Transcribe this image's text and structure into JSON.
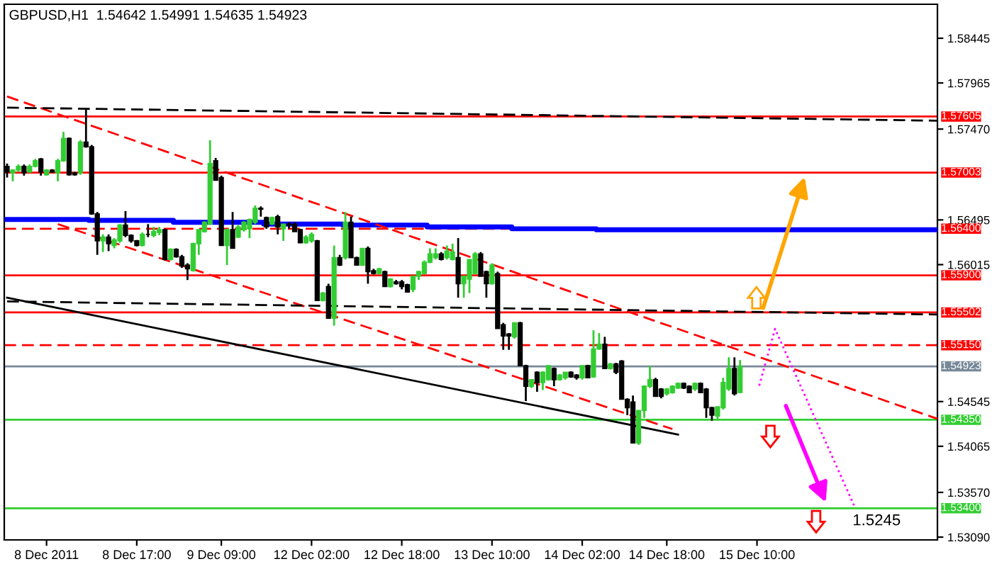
{
  "chart_data": {
    "type": "candlestick",
    "title": "GBPUSD,H1  1.54642 1.54991 1.54635 1.54923",
    "categories": [
      null,
      null,
      null,
      null,
      null,
      null,
      null,
      "8 Dec 2011",
      null,
      null,
      null,
      null,
      null,
      null,
      null,
      null,
      null,
      null,
      null,
      null,
      null,
      null,
      null,
      "8 Dec 17:00",
      null,
      null,
      null,
      null,
      null,
      null,
      null,
      null,
      null,
      null,
      null,
      null,
      null,
      null,
      "9 Dec 09:00",
      null,
      null,
      null,
      null,
      null,
      null,
      null,
      null,
      null,
      null,
      null,
      null,
      null,
      null,
      null,
      "12 Dec 02:00",
      null,
      null,
      null,
      null,
      null,
      null,
      null,
      null,
      null,
      null,
      null,
      null,
      null,
      null,
      null,
      "12 Dec 18:00",
      null,
      null,
      null,
      null,
      null,
      null,
      null,
      null,
      null,
      null,
      null,
      null,
      null,
      null,
      null,
      "13 Dec 10:00",
      null,
      null,
      null,
      null,
      null,
      null,
      null,
      null,
      null,
      null,
      null,
      null,
      null,
      null,
      null,
      "14 Dec 02:00",
      null,
      null,
      null,
      null,
      null,
      null,
      null,
      null,
      null,
      null,
      null,
      null,
      null,
      null,
      "14 Dec 18:00",
      null,
      null,
      null,
      null,
      null,
      null,
      null,
      null,
      null,
      null,
      null,
      null,
      null,
      null,
      null,
      "15 Dec 10:00",
      null,
      null,
      null,
      null,
      null,
      null,
      null,
      null,
      null,
      null,
      null,
      null,
      null,
      null,
      null,
      null,
      null,
      null,
      null,
      null,
      null,
      null,
      null,
      null,
      null,
      null,
      null,
      null,
      null,
      null,
      null,
      null
    ],
    "colors": [
      "#000000",
      "#32cd32",
      "#32cd32",
      "#000000",
      "#32cd32",
      "#32cd32",
      "#000000",
      "#32cd32",
      "#000000",
      "#32cd32",
      "#32cd32",
      "#000000",
      "#000000",
      "#32cd32",
      "#000000",
      "#000000",
      "#000000",
      "#32cd32",
      "#000000",
      "#32cd32",
      "#32cd32",
      "#000000",
      "#000000",
      "#000000",
      "#32cd32",
      "#000000",
      "#32cd32",
      "#32cd32",
      "#000000",
      "#32cd32",
      "#000000",
      "#000000",
      "#000000",
      "#32cd32",
      "#32cd32",
      "#32cd32",
      "#32cd32",
      "#000000",
      "#000000",
      "#32cd32",
      "#000000",
      "#32cd32",
      "#32cd32",
      "#32cd32",
      "#32cd32",
      "#000000",
      "#000000",
      "#32cd32",
      "#000000",
      "#32cd32",
      "#000000",
      "#000000",
      "#000000",
      "#32cd32",
      "#32cd32",
      "#000000",
      "#32cd32",
      "#000000",
      "#32cd32",
      "#000000",
      "#32cd32",
      "#000000",
      "#000000",
      "#32cd32",
      "#000000",
      "#000000",
      "#32cd32",
      "#000000",
      "#32cd32",
      "#000000",
      "#000000",
      "#000000",
      "#32cd32",
      "#32cd32",
      "#32cd32",
      "#32cd32",
      "#32cd32",
      "#000000",
      "#32cd32",
      "#32cd32",
      "#000000",
      "#32cd32",
      "#32cd32",
      "#32cd32",
      "#000000",
      "#000000",
      "#32cd32",
      "#000000",
      "#000000",
      "#000000",
      "#32cd32",
      "#000000",
      "#000000",
      "#32cd32",
      "#000000",
      "#32cd32",
      "#32cd32",
      "#000000",
      "#32cd32",
      "#32cd32",
      "#000000",
      "#000000",
      "#32cd32",
      "#000000",
      "#32cd32",
      "#32cd32",
      "#000000",
      "#32cd32",
      "#000000",
      "#000000",
      "#000000",
      "#000000",
      "#32cd32",
      "#32cd32",
      "#32cd32",
      "#000000",
      "#000000",
      "#32cd32",
      "#32cd32",
      "#32cd32",
      "#000000",
      "#000000",
      "#32cd32",
      "#000000",
      "#000000",
      "#000000",
      "#32cd32",
      "#32cd32",
      "#32cd32",
      "#000000",
      "#32cd32",
      null,
      null,
      null,
      null,
      null,
      null,
      null,
      null,
      null,
      null,
      null,
      null,
      null,
      null,
      null,
      null,
      null,
      null,
      null,
      null,
      null,
      null,
      null,
      null,
      null,
      null,
      null,
      null,
      null,
      null,
      null,
      null,
      null,
      null,
      null
    ],
    "ohlc": [
      [
        1.5707,
        1.571,
        1.5695,
        1.5701
      ],
      [
        1.57,
        1.5704,
        1.5691,
        1.5703
      ],
      [
        1.5703,
        1.5709,
        1.5701,
        1.5707
      ],
      [
        1.5707,
        1.5709,
        1.5697,
        1.57
      ],
      [
        1.5701,
        1.5709,
        1.57,
        1.5707
      ],
      [
        1.5707,
        1.5715,
        1.5706,
        1.5713
      ],
      [
        1.5715,
        1.5716,
        1.5697,
        1.5701
      ],
      [
        1.5698,
        1.5704,
        1.5697,
        1.5703
      ],
      [
        1.5703,
        1.5704,
        1.57,
        1.5701
      ],
      [
        1.57,
        1.5715,
        1.5691,
        1.5713
      ],
      [
        1.5713,
        1.5744,
        1.5712,
        1.5737
      ],
      [
        1.5737,
        1.5738,
        1.5697,
        1.5698
      ],
      [
        1.57,
        1.5701,
        1.5697,
        1.5698
      ],
      [
        1.57,
        1.5735,
        1.5698,
        1.5733
      ],
      [
        1.5733,
        1.5768,
        1.5727,
        1.5728
      ],
      [
        1.5728,
        1.573,
        1.5655,
        1.5656
      ],
      [
        1.5656,
        1.5658,
        1.5612,
        1.5627
      ],
      [
        1.5627,
        1.5634,
        1.5615,
        1.5631
      ],
      [
        1.5631,
        1.5634,
        1.5616,
        1.5624
      ],
      [
        1.5622,
        1.563,
        1.5619,
        1.5628
      ],
      [
        1.5627,
        1.5645,
        1.5625,
        1.5644
      ],
      [
        1.5644,
        1.5659,
        1.5631,
        1.5633
      ],
      [
        1.5633,
        1.5634,
        1.5625,
        1.5627
      ],
      [
        1.5627,
        1.5628,
        1.5621,
        1.5622
      ],
      [
        1.5622,
        1.5636,
        1.5621,
        1.5634
      ],
      [
        1.5634,
        1.5645,
        1.5631,
        1.5634
      ],
      [
        1.5633,
        1.5642,
        1.5631,
        1.5637
      ],
      [
        1.5636,
        1.5642,
        1.5633,
        1.5639
      ],
      [
        1.5639,
        1.564,
        1.5606,
        1.5607
      ],
      [
        1.5607,
        1.5619,
        1.5606,
        1.5618
      ],
      [
        1.5618,
        1.5619,
        1.5609,
        1.561
      ],
      [
        1.561,
        1.5612,
        1.5598,
        1.56
      ],
      [
        1.5601,
        1.5603,
        1.5585,
        1.5597
      ],
      [
        1.5595,
        1.5625,
        1.5594,
        1.5624
      ],
      [
        1.5624,
        1.5639,
        1.5612,
        1.5639
      ],
      [
        1.5637,
        1.5648,
        1.5636,
        1.5647
      ],
      [
        1.5645,
        1.5735,
        1.5644,
        1.571
      ],
      [
        1.5713,
        1.5716,
        1.5692,
        1.5692
      ],
      [
        1.5695,
        1.5697,
        1.5622,
        1.5622
      ],
      [
        1.5622,
        1.564,
        1.5601,
        1.5639
      ],
      [
        1.5639,
        1.5658,
        1.5619,
        1.5619
      ],
      [
        1.5631,
        1.5644,
        1.563,
        1.5642
      ],
      [
        1.5639,
        1.5648,
        1.5637,
        1.5647
      ],
      [
        1.564,
        1.5651,
        1.563,
        1.565
      ],
      [
        1.5647,
        1.5665,
        1.5645,
        1.5662
      ],
      [
        1.5662,
        1.5664,
        1.5653,
        1.5661
      ],
      [
        1.5652,
        1.5653,
        1.564,
        1.5642
      ],
      [
        1.5645,
        1.5653,
        1.5644,
        1.5652
      ],
      [
        1.5653,
        1.5655,
        1.5634,
        1.5642
      ],
      [
        1.564,
        1.5645,
        1.5627,
        1.5645
      ],
      [
        1.5645,
        1.5647,
        1.564,
        1.5644
      ],
      [
        1.5645,
        1.5647,
        1.5637,
        1.5637
      ],
      [
        1.5639,
        1.564,
        1.5625,
        1.5625
      ],
      [
        1.5625,
        1.5633,
        1.5624,
        1.5631
      ],
      [
        1.5627,
        1.5636,
        1.5625,
        1.5634
      ],
      [
        1.5627,
        1.5628,
        1.5563,
        1.5563
      ],
      [
        1.5563,
        1.5572,
        1.5562,
        1.5571
      ],
      [
        1.5578,
        1.5581,
        1.5544,
        1.5544
      ],
      [
        1.5544,
        1.5622,
        1.5536,
        1.5609
      ],
      [
        1.5609,
        1.5612,
        1.56,
        1.5601
      ],
      [
        1.5609,
        1.5658,
        1.5607,
        1.5647
      ],
      [
        1.5647,
        1.5653,
        1.5609,
        1.5609
      ],
      [
        1.5609,
        1.561,
        1.5601,
        1.5601
      ],
      [
        1.5601,
        1.5619,
        1.56,
        1.5619
      ],
      [
        1.5619,
        1.5621,
        1.5581,
        1.5594
      ],
      [
        1.5595,
        1.5597,
        1.5591,
        1.5592
      ],
      [
        1.5592,
        1.5598,
        1.5591,
        1.5597
      ],
      [
        1.5594,
        1.5595,
        1.5578,
        1.5578
      ],
      [
        1.5578,
        1.5587,
        1.5577,
        1.5586
      ],
      [
        1.5583,
        1.5585,
        1.558,
        1.5581
      ],
      [
        1.5583,
        1.5585,
        1.5575,
        1.5578
      ],
      [
        1.558,
        1.5581,
        1.5572,
        1.5572
      ],
      [
        1.5575,
        1.5589,
        1.5572,
        1.5589
      ],
      [
        1.5589,
        1.5595,
        1.5585,
        1.5594
      ],
      [
        1.5592,
        1.5606,
        1.5591,
        1.5604
      ],
      [
        1.5604,
        1.5619,
        1.5603,
        1.5613
      ],
      [
        1.5609,
        1.5619,
        1.5607,
        1.5613
      ],
      [
        1.5613,
        1.5615,
        1.5606,
        1.5607
      ],
      [
        1.5609,
        1.5622,
        1.5607,
        1.5616
      ],
      [
        1.5607,
        1.5624,
        1.5606,
        1.5615
      ],
      [
        1.5609,
        1.563,
        1.5566,
        1.5581
      ],
      [
        1.5581,
        1.5589,
        1.5566,
        1.5589
      ],
      [
        1.5586,
        1.5607,
        1.5571,
        1.5607
      ],
      [
        1.5592,
        1.5615,
        1.5591,
        1.5613
      ],
      [
        1.5613,
        1.5615,
        1.5589,
        1.5589
      ],
      [
        1.5594,
        1.5595,
        1.5566,
        1.5581
      ],
      [
        1.5581,
        1.5603,
        1.558,
        1.5601
      ],
      [
        1.5592,
        1.5594,
        1.5533,
        1.5533
      ],
      [
        1.5537,
        1.5539,
        1.551,
        1.5525
      ],
      [
        1.5527,
        1.5528,
        1.551,
        1.5525
      ],
      [
        1.5524,
        1.5539,
        1.5522,
        1.5539
      ],
      [
        1.5539,
        1.554,
        1.5493,
        1.5493
      ],
      [
        1.5493,
        1.5494,
        1.5455,
        1.5471
      ],
      [
        1.5471,
        1.5478,
        1.5469,
        1.5478
      ],
      [
        1.5486,
        1.5487,
        1.5465,
        1.5475
      ],
      [
        1.5475,
        1.5487,
        1.5467,
        1.5486
      ],
      [
        1.5478,
        1.5493,
        1.5477,
        1.5493
      ],
      [
        1.549,
        1.5491,
        1.5471,
        1.5478
      ],
      [
        1.5478,
        1.5484,
        1.5477,
        1.5483
      ],
      [
        1.548,
        1.5486,
        1.5478,
        1.5486
      ],
      [
        1.5486,
        1.5487,
        1.548,
        1.5481
      ],
      [
        1.5483,
        1.5484,
        1.5478,
        1.548
      ],
      [
        1.548,
        1.5493,
        1.5478,
        1.5493
      ],
      [
        1.5493,
        1.5494,
        1.548,
        1.548
      ],
      [
        1.5481,
        1.5531,
        1.548,
        1.5511
      ],
      [
        1.5511,
        1.5528,
        1.551,
        1.5516
      ],
      [
        1.5516,
        1.5524,
        1.549,
        1.549
      ],
      [
        1.549,
        1.5496,
        1.5489,
        1.5495
      ],
      [
        1.5495,
        1.5496,
        1.5484,
        1.5486
      ],
      [
        1.5498,
        1.5499,
        1.5457,
        1.5457
      ],
      [
        1.5457,
        1.5458,
        1.544,
        1.5448
      ],
      [
        1.5454,
        1.5461,
        1.541,
        1.541
      ],
      [
        1.541,
        1.5445,
        1.5408,
        1.5445
      ],
      [
        1.5445,
        1.5472,
        1.5437,
        1.5471
      ],
      [
        1.5471,
        1.5493,
        1.5469,
        1.5478
      ],
      [
        1.5478,
        1.548,
        1.546,
        1.546
      ],
      [
        1.5468,
        1.5469,
        1.5458,
        1.546
      ],
      [
        1.5463,
        1.5469,
        1.5461,
        1.5468
      ],
      [
        1.5464,
        1.5472,
        1.5463,
        1.5471
      ],
      [
        1.5469,
        1.5475,
        1.5468,
        1.5474
      ],
      [
        1.5474,
        1.5475,
        1.5468,
        1.5469
      ],
      [
        1.5471,
        1.5472,
        1.5464,
        1.5464
      ],
      [
        1.5468,
        1.5475,
        1.5466,
        1.5474
      ],
      [
        1.5474,
        1.5475,
        1.5464,
        1.5464
      ],
      [
        1.5468,
        1.5469,
        1.5437,
        1.5448
      ],
      [
        1.5448,
        1.5449,
        1.5434,
        1.544
      ],
      [
        1.5439,
        1.5449,
        1.5434,
        1.5449
      ],
      [
        1.5448,
        1.548,
        1.5446,
        1.5475
      ],
      [
        1.5468,
        1.5502,
        1.5466,
        1.549
      ],
      [
        1.549,
        1.5502,
        1.5461,
        1.5463
      ],
      [
        1.54642,
        1.54991,
        1.54635,
        1.54923
      ],
      null,
      null,
      null,
      null,
      null,
      null,
      null,
      null,
      null,
      null,
      null,
      null,
      null,
      null,
      null,
      null,
      null,
      null,
      null,
      null,
      null,
      null,
      null,
      null,
      null,
      null,
      null,
      null,
      null,
      null,
      null,
      null,
      null,
      null,
      null
    ],
    "series": [
      {
        "type": "step",
        "color": "#0000ff",
        "values": [
          1.565,
          1.565,
          1.565,
          1.565,
          1.565,
          1.565,
          1.565,
          1.565,
          1.565,
          1.565,
          1.565,
          1.565,
          1.565,
          1.565,
          1.565,
          1.5649,
          1.5649,
          1.5649,
          1.5649,
          1.5649,
          1.5649,
          1.5649,
          1.5649,
          1.5649,
          1.5649,
          1.5649,
          1.5649,
          1.5649,
          1.5649,
          1.5649,
          1.5647,
          1.5647,
          1.5647,
          1.5647,
          1.5647,
          1.5647,
          1.5647,
          1.5647,
          1.5647,
          1.5647,
          1.5647,
          1.5647,
          1.5647,
          1.5647,
          1.5647,
          1.5647,
          1.5645,
          1.5645,
          1.5645,
          1.5645,
          1.5645,
          1.5645,
          1.5645,
          1.5645,
          1.5645,
          1.5645,
          1.5645,
          1.5645,
          1.5645,
          1.5645,
          1.5644,
          1.5644,
          1.5644,
          1.5644,
          1.5644,
          1.5644,
          1.5644,
          1.5644,
          1.5644,
          1.5644,
          1.5644,
          1.5644,
          1.5644,
          1.5644,
          1.5644,
          1.5642,
          1.5642,
          1.5642,
          1.5642,
          1.5642,
          1.5642,
          1.5642,
          1.5642,
          1.5642,
          1.5642,
          1.5642,
          1.5642,
          1.5642,
          1.5642,
          1.5642,
          1.564,
          1.564,
          1.564,
          1.564,
          1.564,
          1.564,
          1.564,
          1.564,
          1.564,
          1.564,
          1.564,
          1.564,
          1.564,
          1.564,
          1.564,
          1.5639,
          1.5639,
          1.5639,
          1.5639,
          1.5639,
          1.5639,
          1.5639,
          1.5639,
          1.5639,
          1.5639,
          1.5639,
          1.5639,
          1.5639,
          1.5639,
          1.5639,
          1.5639,
          1.5639,
          1.5639,
          1.5639,
          1.5639,
          1.5639,
          1.5639,
          1.5639,
          1.5639,
          1.5639,
          1.5639,
          1.5639,
          1.5639,
          1.5639,
          1.5639,
          1.5639,
          1.5639,
          1.5639,
          1.5639,
          1.5639,
          1.5639,
          1.5639,
          1.5639,
          1.5639,
          1.5639,
          1.5639,
          1.5639,
          1.5639,
          1.5639,
          1.5639,
          1.5639,
          1.5639,
          1.5639,
          1.5639,
          1.5639,
          1.5639,
          1.5639,
          1.5639,
          1.5639,
          1.5639,
          1.5639,
          1.5639,
          1.5639,
          1.5639,
          1.5639,
          1.5639
        ]
      },
      {
        "type": "line",
        "color": "#ff0000",
        "line_style": "dashed",
        "values": [
          1.5782,
          null,
          null,
          null,
          null,
          null,
          null,
          null,
          null,
          null,
          null,
          null,
          null,
          null,
          null,
          null,
          null,
          null,
          null,
          null,
          null,
          null,
          null,
          null,
          null,
          null,
          null,
          null,
          null,
          null,
          null,
          null,
          null,
          null,
          null,
          null,
          null,
          null,
          null,
          null,
          null,
          null,
          null,
          null,
          null,
          null,
          null,
          null,
          null,
          null,
          null,
          null,
          null,
          null,
          null,
          null,
          null,
          null,
          null,
          null,
          null,
          null,
          null,
          null,
          null,
          null,
          null,
          null,
          null,
          null,
          null,
          null,
          null,
          null,
          null,
          null,
          null,
          null,
          null,
          null,
          null,
          null,
          null,
          null,
          null,
          null,
          null,
          null,
          null,
          null,
          null,
          null,
          null,
          null,
          null,
          null,
          null,
          null,
          null,
          null,
          null,
          null,
          null,
          null,
          null,
          null,
          null,
          null,
          null,
          null,
          null,
          null,
          null,
          null,
          null,
          null,
          null,
          null,
          null,
          null,
          null,
          null,
          null,
          null,
          null,
          null,
          null,
          null,
          null,
          null,
          null,
          null,
          null,
          null,
          null,
          null,
          null,
          null,
          null,
          null,
          null,
          null,
          null,
          null,
          null,
          null,
          null,
          null,
          null,
          null,
          null,
          null,
          null,
          null,
          null,
          null,
          null,
          null,
          null,
          null,
          null,
          null,
          null,
          null,
          null,
          1.5436
        ]
      },
      {
        "type": "line",
        "color": "#ff0000",
        "line_style": "dashed",
        "values": [
          null,
          null,
          null,
          null,
          null,
          null,
          null,
          null,
          null,
          1.5645,
          null,
          null,
          null,
          null,
          null,
          null,
          null,
          null,
          null,
          null,
          null,
          null,
          null,
          null,
          null,
          null,
          null,
          null,
          null,
          null,
          null,
          null,
          null,
          null,
          null,
          null,
          null,
          null,
          null,
          null,
          null,
          null,
          null,
          null,
          null,
          null,
          null,
          null,
          null,
          null,
          null,
          null,
          null,
          null,
          null,
          null,
          null,
          null,
          null,
          null,
          null,
          null,
          null,
          null,
          null,
          null,
          null,
          null,
          null,
          null,
          null,
          null,
          null,
          null,
          null,
          null,
          null,
          null,
          null,
          null,
          null,
          null,
          null,
          null,
          null,
          null,
          null,
          null,
          null,
          null,
          null,
          null,
          null,
          null,
          null,
          null,
          null,
          null,
          null,
          null,
          null,
          null,
          null,
          null,
          null,
          null,
          null,
          null,
          null,
          null,
          null,
          null,
          null,
          null,
          null,
          null,
          null,
          null,
          1.5425,
          null,
          null,
          null,
          null,
          null,
          null,
          null,
          null,
          null,
          null,
          null,
          null,
          null,
          null,
          null,
          null,
          null,
          null,
          null,
          null,
          null,
          null,
          null,
          null,
          null,
          null,
          null,
          null,
          null,
          null,
          null,
          null,
          null,
          null,
          null,
          null,
          null,
          null,
          null,
          null,
          null,
          null,
          null,
          null,
          null,
          null,
          null
        ]
      },
      {
        "type": "line",
        "color": "#000000",
        "line_style": "solid",
        "values": [
          1.5566,
          null,
          null,
          null,
          null,
          null,
          null,
          null,
          null,
          null,
          null,
          null,
          null,
          null,
          null,
          null,
          null,
          null,
          null,
          null,
          null,
          null,
          null,
          null,
          null,
          null,
          null,
          null,
          null,
          null,
          null,
          null,
          null,
          null,
          null,
          null,
          null,
          null,
          null,
          null,
          null,
          null,
          null,
          null,
          null,
          null,
          null,
          null,
          null,
          null,
          null,
          null,
          null,
          null,
          null,
          null,
          null,
          null,
          null,
          null,
          null,
          null,
          null,
          null,
          null,
          null,
          null,
          null,
          null,
          null,
          null,
          null,
          null,
          null,
          null,
          null,
          null,
          null,
          null,
          null,
          null,
          null,
          null,
          null,
          null,
          null,
          null,
          null,
          null,
          null,
          null,
          null,
          null,
          null,
          null,
          null,
          null,
          null,
          null,
          null,
          null,
          null,
          null,
          null,
          null,
          null,
          null,
          null,
          null,
          null,
          null,
          null,
          null,
          null,
          null,
          null,
          null,
          null,
          null,
          1.5419,
          null,
          null,
          null,
          null,
          null,
          null,
          null,
          null,
          null,
          null,
          null,
          null,
          null,
          null,
          null,
          null,
          null,
          null,
          null,
          null,
          null,
          null,
          null,
          null,
          null,
          null,
          null,
          null,
          null,
          null,
          null,
          null,
          null,
          null,
          null,
          null,
          null,
          null,
          null,
          null,
          null,
          null,
          null,
          null,
          null,
          null
        ]
      },
      {
        "type": "line",
        "color": "#000000",
        "line_style": "dashed",
        "values": [
          1.577,
          null,
          null,
          null,
          null,
          null,
          null,
          null,
          null,
          null,
          null,
          null,
          null,
          null,
          null,
          null,
          null,
          null,
          null,
          null,
          null,
          null,
          null,
          null,
          null,
          null,
          null,
          null,
          null,
          null,
          null,
          null,
          null,
          null,
          null,
          null,
          null,
          null,
          null,
          null,
          null,
          null,
          null,
          null,
          null,
          null,
          null,
          null,
          null,
          null,
          null,
          null,
          null,
          null,
          null,
          null,
          null,
          null,
          null,
          null,
          null,
          null,
          null,
          null,
          null,
          null,
          null,
          null,
          null,
          null,
          null,
          null,
          null,
          null,
          null,
          null,
          null,
          null,
          null,
          null,
          null,
          null,
          null,
          null,
          null,
          null,
          null,
          null,
          null,
          null,
          null,
          null,
          null,
          null,
          null,
          null,
          null,
          null,
          null,
          null,
          null,
          null,
          null,
          null,
          null,
          null,
          null,
          null,
          null,
          null,
          null,
          null,
          null,
          null,
          null,
          null,
          null,
          null,
          null,
          null,
          null,
          null,
          null,
          null,
          null,
          null,
          null,
          null,
          null,
          null,
          null,
          null,
          null,
          null,
          null,
          null,
          null,
          null,
          null,
          null,
          null,
          null,
          null,
          null,
          null,
          null,
          null,
          null,
          null,
          null,
          null,
          null,
          null,
          null,
          null,
          null,
          null,
          null,
          null,
          null,
          null,
          null,
          null,
          null,
          null,
          1.5756
        ]
      },
      {
        "type": "line",
        "color": "#000000",
        "line_style": "dashed",
        "values": [
          1.5562,
          null,
          null,
          null,
          null,
          null,
          null,
          null,
          null,
          null,
          null,
          null,
          null,
          null,
          null,
          null,
          null,
          null,
          null,
          null,
          null,
          null,
          null,
          null,
          null,
          null,
          null,
          null,
          null,
          null,
          null,
          null,
          null,
          null,
          null,
          null,
          null,
          null,
          null,
          null,
          null,
          null,
          null,
          null,
          null,
          null,
          null,
          null,
          null,
          null,
          null,
          null,
          null,
          null,
          null,
          null,
          null,
          null,
          null,
          null,
          null,
          null,
          null,
          null,
          null,
          null,
          null,
          null,
          null,
          null,
          null,
          null,
          null,
          null,
          null,
          null,
          null,
          null,
          null,
          null,
          null,
          null,
          null,
          null,
          null,
          null,
          null,
          null,
          null,
          null,
          null,
          null,
          null,
          null,
          null,
          null,
          null,
          null,
          null,
          null,
          null,
          null,
          null,
          null,
          null,
          null,
          null,
          null,
          null,
          null,
          null,
          null,
          null,
          null,
          null,
          null,
          null,
          null,
          null,
          null,
          null,
          null,
          null,
          null,
          null,
          null,
          null,
          null,
          null,
          null,
          null,
          null,
          null,
          null,
          null,
          null,
          null,
          null,
          null,
          null,
          null,
          null,
          null,
          null,
          null,
          null,
          null,
          null,
          null,
          null,
          null,
          null,
          null,
          null,
          null,
          null,
          null,
          null,
          null,
          null,
          null,
          null,
          null,
          null,
          null,
          1.5548
        ]
      }
    ],
    "ylim": [
      1.5306,
      1.5881
    ],
    "yticks": [
      {
        "value": 1.58445,
        "label": "1.58445"
      },
      {
        "value": 1.57965,
        "label": "1.57965"
      },
      {
        "value": 1.5747,
        "label": "1.57470"
      },
      {
        "value": 1.56495,
        "label": "1.56495"
      },
      {
        "value": 1.56015,
        "label": "1.56015"
      },
      {
        "value": 1.54545,
        "label": "1.54545"
      },
      {
        "value": 1.54065,
        "label": "1.54065"
      },
      {
        "value": 1.5357,
        "label": "1.53570"
      },
      {
        "value": 1.5309,
        "label": "1.53090"
      }
    ],
    "ref_lines": [
      {
        "axis": "y",
        "value": 1.57605,
        "label": "1.57605",
        "color": "#ff0000",
        "line_style": "solid"
      },
      {
        "axis": "y",
        "value": 1.57003,
        "label": "1.57003",
        "color": "#ff0000",
        "line_style": "solid"
      },
      {
        "axis": "y",
        "value": 1.564,
        "label": "1.56400",
        "color": "#ff0000",
        "line_style": "dashed"
      },
      {
        "axis": "y",
        "value": 1.559,
        "label": "1.55900",
        "color": "#ff0000",
        "line_style": "solid"
      },
      {
        "axis": "y",
        "value": 1.55502,
        "label": "1.55502",
        "color": "#ff0000",
        "line_style": "solid"
      },
      {
        "axis": "y",
        "value": 1.5515,
        "label": "1.55150",
        "color": "#ff0000",
        "line_style": "dashed"
      },
      {
        "axis": "y",
        "value": 1.54923,
        "label": "1.54923",
        "color": "#778899",
        "line_style": "solid"
      },
      {
        "axis": "y",
        "value": 1.5435,
        "label": "1.54350",
        "color": "#32cd32",
        "line_style": "solid"
      },
      {
        "axis": "y",
        "value": 1.534,
        "label": "1.53400",
        "color": "#32cd32",
        "line_style": "solid"
      }
    ],
    "annotations": [
      "1.5245"
    ],
    "grid": false,
    "legend": false
  }
}
